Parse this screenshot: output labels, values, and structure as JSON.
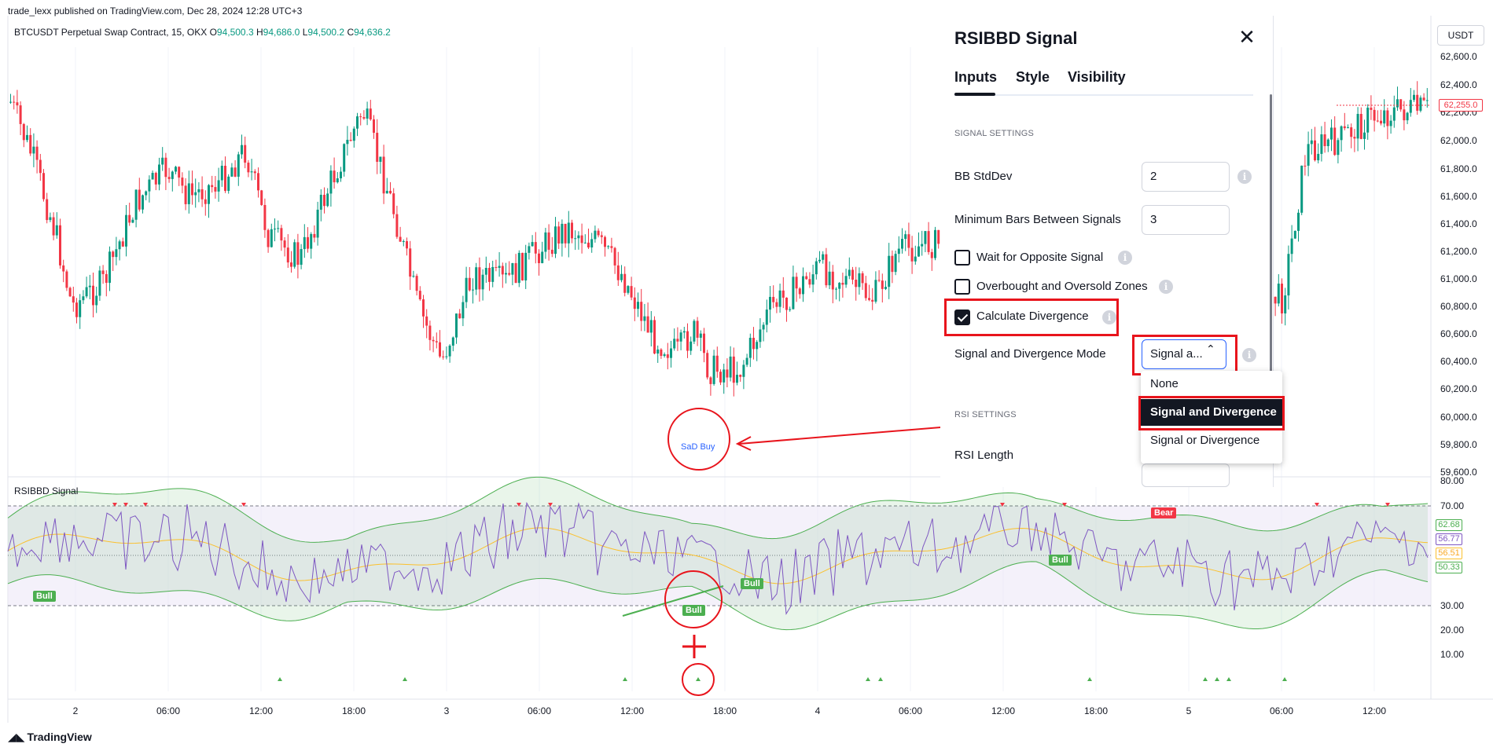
{
  "header": {
    "published": "trade_lexx published on TradingView.com, Dec 28, 2024 12:28 UTC+3",
    "symbol": "BTCUSDT Perpetual Swap Contract, 15, OKX",
    "o_label": "O",
    "o_val": "94,500.3",
    "h_label": "H",
    "h_val": "94,686.0",
    "l_label": "L",
    "l_val": "94,500.2",
    "c_label": "C",
    "c_val": "94,636.2"
  },
  "price_axis": {
    "currency": "USDT",
    "ticks": [
      "62,600.0",
      "62,400.0",
      "62,200.0",
      "62,000.0",
      "61,800.0",
      "61,600.0",
      "61,400.0",
      "61,200.0",
      "61,000.0",
      "60,800.0",
      "60,600.0",
      "60,400.0",
      "60,200.0",
      "60,000.0",
      "59,800.0",
      "59,600.0"
    ],
    "last_price": "62,255.0"
  },
  "indicator": {
    "name": "RSIBBD Signal",
    "ticks": [
      "80.00",
      "70.00",
      "30.00",
      "20.00",
      "10.00"
    ],
    "values": [
      "62.68",
      "56.77",
      "56.51",
      "50.33"
    ],
    "labels": {
      "bull": "Bull",
      "bear": "Bear"
    },
    "rsi_color": "#7e57c2",
    "basis_color": "#fbc02d",
    "band_color": "#4caf50"
  },
  "time_axis": [
    "2",
    "06:00",
    "12:00",
    "18:00",
    "3",
    "06:00",
    "12:00",
    "18:00",
    "4",
    "06:00",
    "12:00",
    "18:00",
    "5",
    "06:00",
    "12:00"
  ],
  "annotation": {
    "sad_buy": "SaD Buy"
  },
  "footer": {
    "brand": "TradingView"
  },
  "dialog": {
    "title": "RSIBBD Signal",
    "tabs": [
      "Inputs",
      "Style",
      "Visibility"
    ],
    "signal_section": "SIGNAL SETTINGS",
    "bb_stddev_label": "BB StdDev",
    "bb_stddev_value": "2",
    "min_bars_label": "Minimum Bars Between Signals",
    "min_bars_value": "3",
    "wait_opposite": "Wait for Opposite Signal",
    "ob_os_zones": "Overbought and Oversold Zones",
    "calc_divergence": "Calculate Divergence",
    "mode_label": "Signal and Divergence Mode",
    "mode_value": "Signal a...",
    "rsi_section": "RSI SETTINGS",
    "rsi_length_label": "RSI Length",
    "mode_options": [
      "None",
      "Signal and Divergence",
      "Signal or Divergence"
    ]
  },
  "colors": {
    "up": "#089981",
    "down": "#f23645",
    "highlight": "#e8141c",
    "accent": "#2962ff"
  }
}
